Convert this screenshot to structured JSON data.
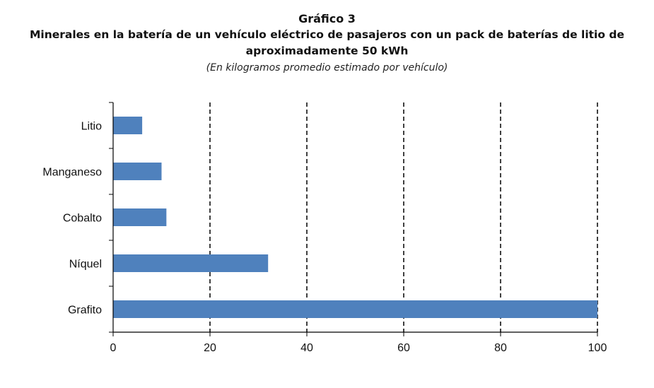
{
  "chart_data": {
    "type": "bar",
    "orientation": "horizontal",
    "chart_number": "Gráfico 3",
    "title": "Minerales en la batería de un vehículo eléctrico de pasajeros con un pack de baterías de litio de aproximadamente 50 kWh",
    "subtitle": "(En kilogramos promedio estimado por vehículo)",
    "categories": [
      "Litio",
      "Manganeso",
      "Cobalto",
      "Níquel",
      "Grafito"
    ],
    "values": [
      6,
      10,
      11,
      32,
      100
    ],
    "xlim": [
      0,
      100
    ],
    "x_ticks": [
      0,
      20,
      40,
      60,
      80,
      100
    ],
    "grid": "vertical dashed",
    "bar_color": "#4f81bd",
    "xlabel": "",
    "ylabel": ""
  }
}
